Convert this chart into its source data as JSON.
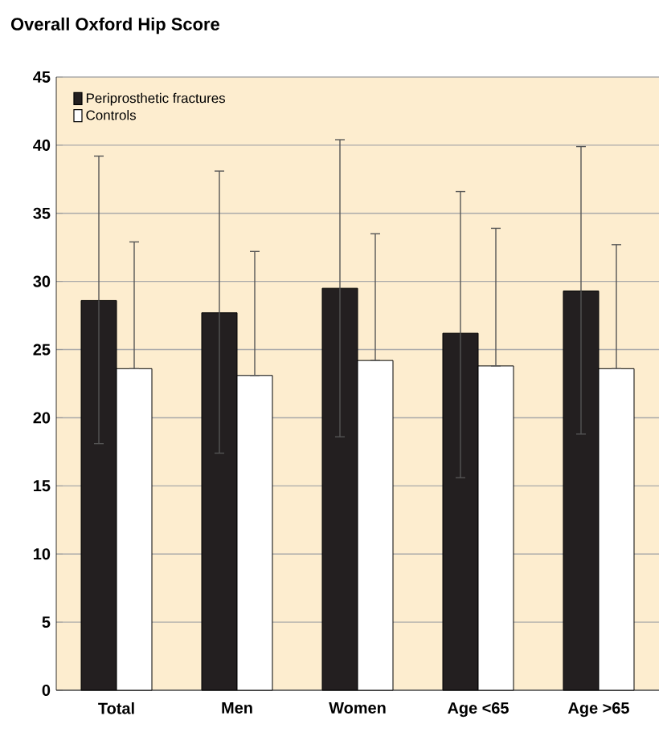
{
  "chart_data": {
    "type": "bar",
    "title": "Overall Oxford Hip Score",
    "categories": [
      "Total",
      "Men",
      "Women",
      "Age <65",
      "Age >65"
    ],
    "series": [
      {
        "name": "Periprosthetic fractures",
        "color": "#231f20",
        "values": [
          28.6,
          27.7,
          29.5,
          26.2,
          29.3
        ],
        "errors": [
          [
            18.1,
            39.2
          ],
          [
            17.4,
            38.1
          ],
          [
            18.6,
            40.4
          ],
          [
            15.6,
            36.6
          ],
          [
            18.8,
            39.9
          ]
        ]
      },
      {
        "name": "Controls",
        "color": "#ffffff",
        "values": [
          23.6,
          23.1,
          24.2,
          23.8,
          23.6
        ],
        "errors": [
          [
            23.6,
            32.9
          ],
          [
            23.1,
            32.2
          ],
          [
            24.2,
            33.5
          ],
          [
            23.8,
            33.9
          ],
          [
            23.6,
            32.7
          ]
        ]
      }
    ],
    "ylim": [
      0,
      45
    ],
    "yticks": [
      0,
      5,
      10,
      15,
      20,
      25,
      30,
      35,
      40,
      45
    ],
    "grid": "y",
    "legend": "top left"
  }
}
